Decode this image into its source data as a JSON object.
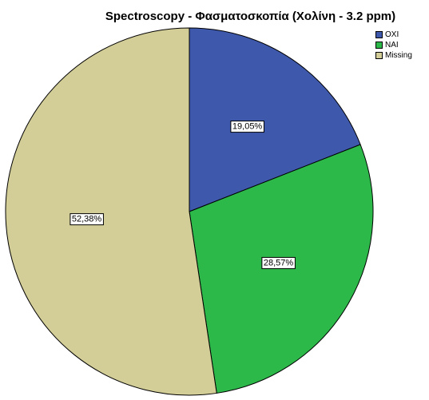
{
  "chart_data": {
    "type": "pie",
    "title": "Spectroscopy - Φασματοσκοπία (Χολίνη - 3.2 ppm)",
    "categories": [
      "ΟΧΙ",
      "ΝΑΙ",
      "Missing"
    ],
    "values": [
      19.05,
      28.57,
      52.38
    ],
    "labels": [
      "19,05%",
      "28,57%",
      "52,38%"
    ],
    "colors": [
      "#3e58ac",
      "#2db84a",
      "#d3ce97"
    ],
    "legend_position": "top-right"
  }
}
